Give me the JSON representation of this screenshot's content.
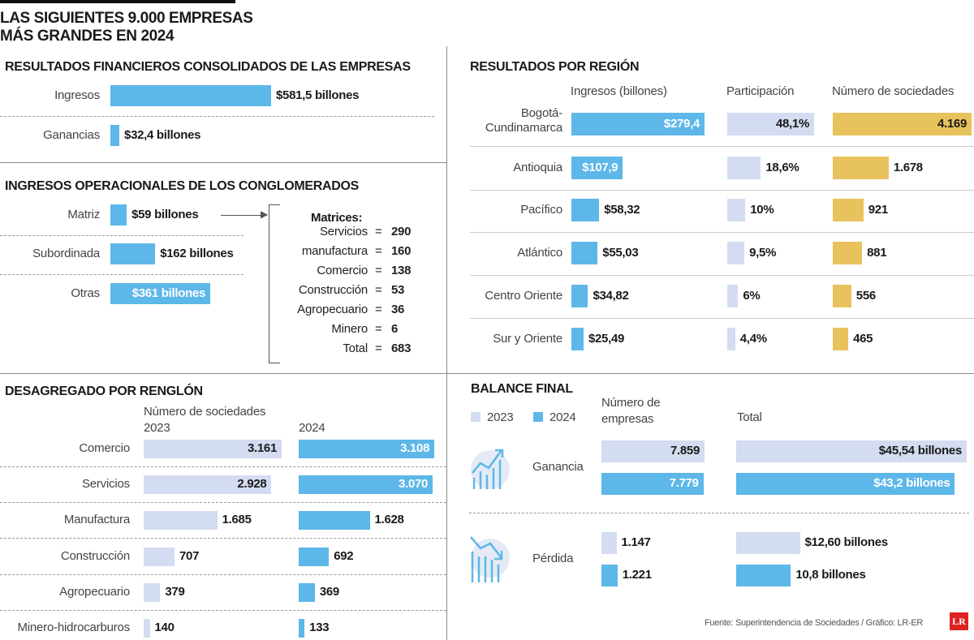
{
  "title": "LAS SIGUIENTES 9.000 EMPRESAS MÁS GRANDES EN 2024",
  "title_lines": [
    "LAS SIGUIENTES 9.000 EMPRESAS",
    "MÁS GRANDES EN 2024"
  ],
  "colors": {
    "blue": "#5db7e8",
    "light": "#d3dcf0",
    "gold": "#e8c25c"
  },
  "sections": {
    "financieros": "RESULTADOS FINANCIEROS CONSOLIDADOS DE LAS EMPRESAS",
    "conglomerados": "INGRESOS OPERACIONALES DE LOS CONGLOMERADOS",
    "region": "RESULTADOS POR REGIÓN",
    "renglon": "DESAGREGADO POR RENGLÓN",
    "balance": "BALANCE FINAL"
  },
  "matrices": {
    "title": "Matrices:",
    "rows": [
      {
        "label": "Servicios",
        "value": "290"
      },
      {
        "label": "manufactura",
        "value": "160"
      },
      {
        "label": "Comercio",
        "value": "138"
      },
      {
        "label": "Construcción",
        "value": "53"
      },
      {
        "label": "Agropecuario",
        "value": "36"
      },
      {
        "label": "Minero",
        "value": "6"
      },
      {
        "label": "Total",
        "value": "683"
      }
    ]
  },
  "legend": {
    "y2023": "2023",
    "y2024": "2024"
  },
  "icons": {
    "ganancia": "chart-up-icon",
    "perdida": "chart-down-icon",
    "logo": "LR"
  },
  "footer": "Fuente: Superintendencia de Sociedades / Gráfico: LR-ER",
  "chart_data": [
    {
      "id": "financieros",
      "type": "bar",
      "categories": [
        "Ingresos",
        "Ganancias"
      ],
      "values": [
        581.5,
        32.4
      ],
      "labels": [
        "$581,5 billones",
        "$32,4 billones"
      ],
      "unit": "billones"
    },
    {
      "id": "conglomerados",
      "type": "bar",
      "categories": [
        "Matriz",
        "Subordinada",
        "Otras"
      ],
      "values": [
        59,
        162,
        361
      ],
      "labels": [
        "$59 billones",
        "$162 billones",
        "$361 billones"
      ]
    },
    {
      "id": "region",
      "type": "bar",
      "categories": [
        "Bogotá-Cundinamarca",
        "Antioquia",
        "Pacífico",
        "Atlántico",
        "Centro Oriente",
        "Sur y Oriente"
      ],
      "series": [
        {
          "name": "Ingresos (billones)",
          "values": [
            279.4,
            107.9,
            58.32,
            55.03,
            34.82,
            25.49
          ],
          "labels": [
            "$279,4",
            "$107,9",
            "$58,32",
            "$55,03",
            "$34,82",
            "$25,49"
          ],
          "color": "#5db7e8"
        },
        {
          "name": "Participación",
          "values": [
            48.1,
            18.6,
            10,
            9.5,
            6,
            4.4
          ],
          "labels": [
            "48,1%",
            "18,6%",
            "10%",
            "9,5%",
            "6%",
            "4,4%"
          ],
          "color": "#d3dcf0"
        },
        {
          "name": "Número de sociedades",
          "values": [
            4169,
            1678,
            921,
            881,
            556,
            465
          ],
          "labels": [
            "4.169",
            "1.678",
            "921",
            "881",
            "556",
            "465"
          ],
          "color": "#e8c25c"
        }
      ]
    },
    {
      "id": "renglon",
      "type": "bar",
      "subtitle": "Número de sociedades",
      "categories": [
        "Comercio",
        "Servicios",
        "Manufactura",
        "Construcción",
        "Agropecuario",
        "Minero-hidrocarburos"
      ],
      "series": [
        {
          "name": "2023",
          "values": [
            3161,
            2928,
            1685,
            707,
            379,
            140
          ],
          "labels": [
            "3.161",
            "2.928",
            "1.685",
            "707",
            "379",
            "140"
          ],
          "color": "#d3dcf0"
        },
        {
          "name": "2024",
          "values": [
            3108,
            3070,
            1628,
            692,
            369,
            133
          ],
          "labels": [
            "3.108",
            "3.070",
            "1.628",
            "692",
            "369",
            "133"
          ],
          "color": "#5db7e8"
        }
      ]
    },
    {
      "id": "balance",
      "type": "bar",
      "categories": [
        "Ganancia",
        "Pérdida"
      ],
      "columns": [
        "Número de empresas",
        "Total"
      ],
      "series": [
        {
          "name": "2023",
          "empresas": [
            7859,
            1147
          ],
          "empresas_labels": [
            "7.859",
            "1.147"
          ],
          "total": [
            45.54,
            12.6
          ],
          "total_labels": [
            "$45,54 billones",
            "$12,60 billones"
          ],
          "color": "#d3dcf0"
        },
        {
          "name": "2024",
          "empresas": [
            7779,
            1221
          ],
          "empresas_labels": [
            "7.779",
            "1.221"
          ],
          "total": [
            43.2,
            10.8
          ],
          "total_labels": [
            "$43,2 billones",
            "10,8 billones"
          ],
          "color": "#5db7e8"
        }
      ]
    }
  ]
}
